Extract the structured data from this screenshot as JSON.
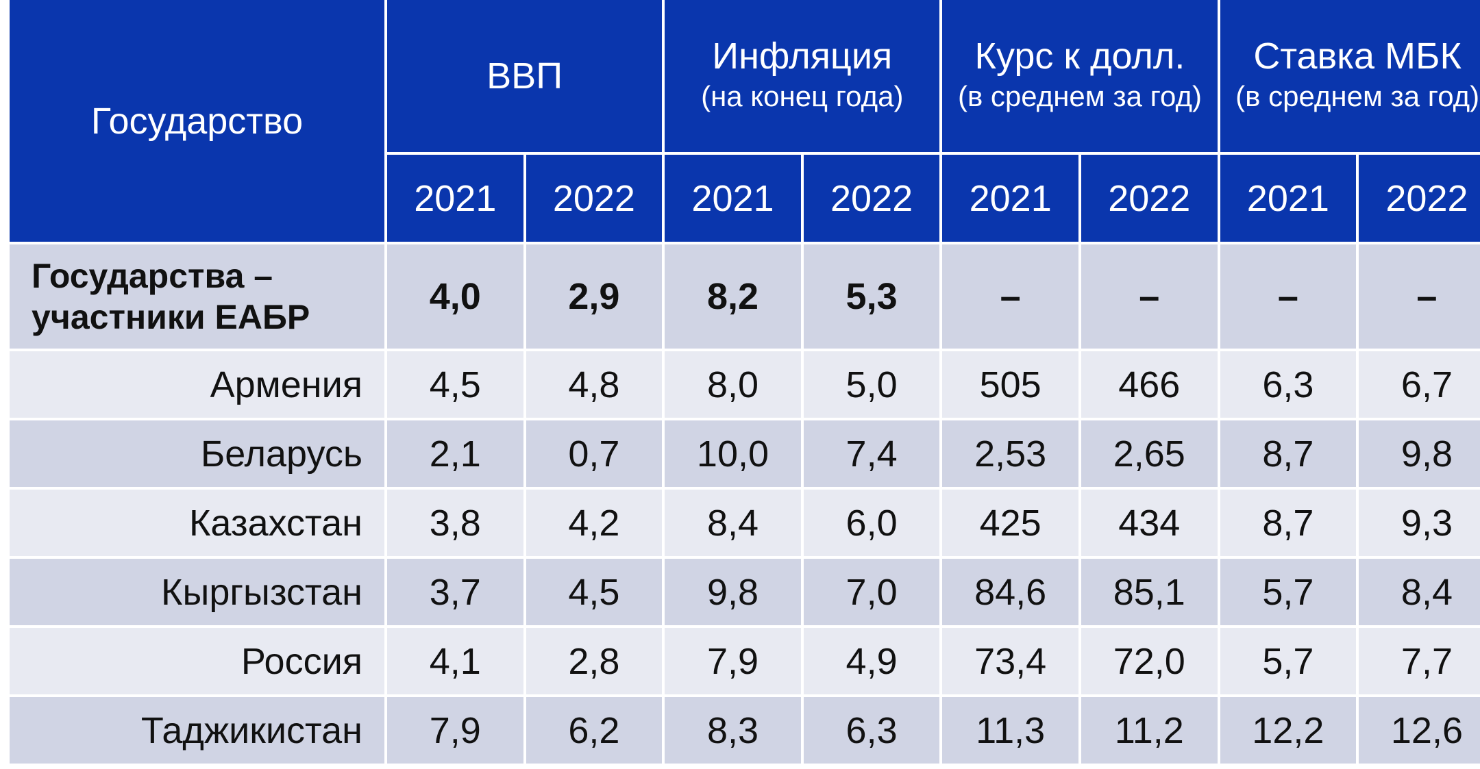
{
  "header": {
    "state": "Государство",
    "groups": [
      {
        "title": "ВВП",
        "subtitle": ""
      },
      {
        "title": "Инфляция",
        "subtitle": "(на конец года)"
      },
      {
        "title": "Курс к долл.",
        "subtitle": "(в среднем за год)"
      },
      {
        "title": "Ставка МБК",
        "subtitle": "(в среднем за год)"
      }
    ],
    "years": [
      "2021",
      "2022",
      "2021",
      "2022",
      "2021",
      "2022",
      "2021",
      "2022"
    ]
  },
  "total": {
    "label": "Государства – участники ЕАБР",
    "values": [
      "4,0",
      "2,9",
      "8,2",
      "5,3",
      "–",
      "–",
      "–",
      "–"
    ]
  },
  "rows": [
    {
      "country": "Армения",
      "values": [
        "4,5",
        "4,8",
        "8,0",
        "5,0",
        "505",
        "466",
        "6,3",
        "6,7"
      ]
    },
    {
      "country": "Беларусь",
      "values": [
        "2,1",
        "0,7",
        "10,0",
        "7,4",
        "2,53",
        "2,65",
        "8,7",
        "9,8"
      ]
    },
    {
      "country": "Казахстан",
      "values": [
        "3,8",
        "4,2",
        "8,4",
        "6,0",
        "425",
        "434",
        "8,7",
        "9,3"
      ]
    },
    {
      "country": "Кыргызстан",
      "values": [
        "3,7",
        "4,5",
        "9,8",
        "7,0",
        "84,6",
        "85,1",
        "5,7",
        "8,4"
      ]
    },
    {
      "country": "Россия",
      "values": [
        "4,1",
        "2,8",
        "7,9",
        "4,9",
        "73,4",
        "72,0",
        "5,7",
        "7,7"
      ]
    },
    {
      "country": "Таджикистан",
      "values": [
        "7,9",
        "6,2",
        "8,3",
        "6,3",
        "11,3",
        "11,2",
        "12,2",
        "12,6"
      ]
    }
  ],
  "colors": {
    "header_bg": "#0a36ad",
    "header_text": "#ffffff",
    "row_dark": "#d0d4e4",
    "row_light": "#e8eaf2"
  }
}
